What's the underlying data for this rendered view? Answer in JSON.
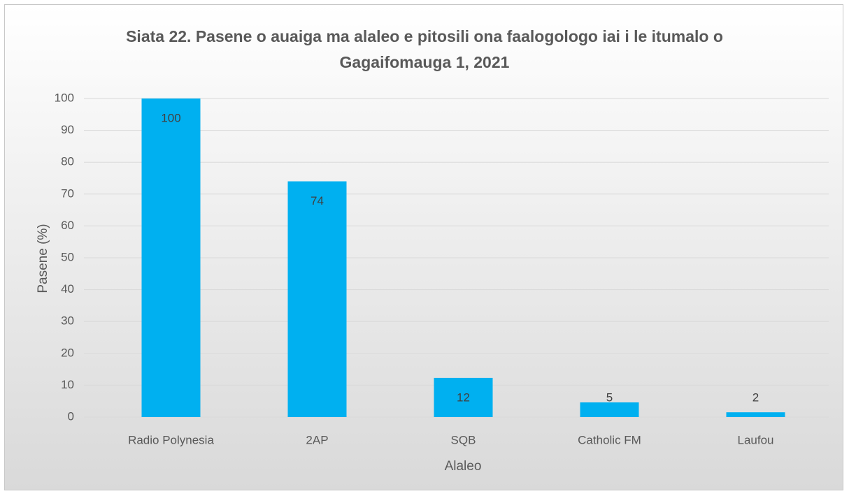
{
  "chart_data": {
    "type": "bar",
    "title": "Siata 22. Pasene o auaiga ma alaleo e pitosili ona faalogologo iai i le itumalo o Gagaifomauga 1, 2021",
    "x_label": "Alaleo",
    "y_label": "Pasene (%)",
    "categories": [
      "Radio Polynesia",
      "2AP",
      "SQB",
      "Catholic FM",
      "Laufou"
    ],
    "values": [
      100,
      74,
      12.3,
      4.6,
      1.5
    ],
    "value_labels": [
      "100",
      "74",
      "12",
      "5",
      "2"
    ],
    "color": "#00b0f0",
    "ylim": [
      0,
      100
    ],
    "yticks": [
      0,
      10,
      20,
      30,
      40,
      50,
      60,
      70,
      80,
      90,
      100
    ],
    "grid": true
  }
}
